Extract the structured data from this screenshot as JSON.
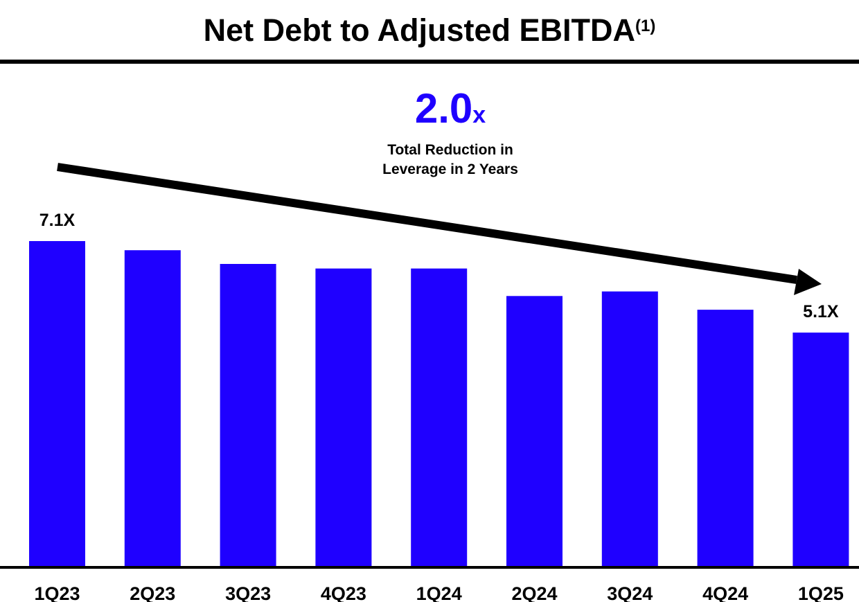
{
  "title": {
    "text": "Net Debt to Adjusted EBITDA",
    "footnote": "(1)"
  },
  "callout": {
    "value": "2.0",
    "unit": "x",
    "line1": "Total Reduction in",
    "line2": "Leverage in 2 Years"
  },
  "colors": {
    "bar": "#1f00ff",
    "callout": "#1f00ff",
    "text": "#000000",
    "arrow": "#000000"
  },
  "chart_data": {
    "type": "bar",
    "categories": [
      "1Q23",
      "2Q23",
      "3Q23",
      "4Q23",
      "1Q24",
      "2Q24",
      "3Q24",
      "4Q24",
      "1Q25"
    ],
    "values": [
      7.1,
      6.9,
      6.6,
      6.5,
      6.5,
      5.9,
      6.0,
      5.6,
      5.1
    ],
    "data_labels": [
      "7.1X",
      "",
      "",
      "",
      "",
      "",
      "",
      "",
      "5.1X"
    ],
    "ylim": [
      0,
      7.1
    ],
    "grid": false,
    "legend": "none",
    "trend_arrow": {
      "from": "1Q23",
      "to": "1Q25",
      "direction": "down"
    }
  }
}
